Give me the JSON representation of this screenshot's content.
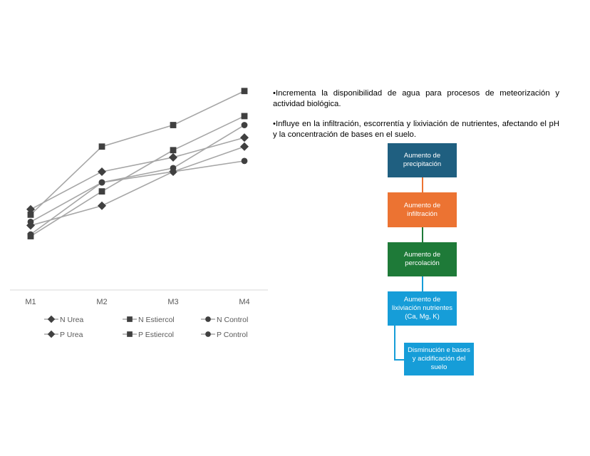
{
  "chart_data": {
    "type": "line",
    "categories": [
      "M1",
      "M2",
      "M3",
      "M4"
    ],
    "series": [
      {
        "name": "N Urea",
        "marker": "diamond",
        "values": [
          36,
          47,
          66,
          80
        ]
      },
      {
        "name": "N Estiercol",
        "marker": "square",
        "values": [
          30,
          55,
          78,
          97
        ]
      },
      {
        "name": "N Control",
        "marker": "circle",
        "values": [
          31,
          60,
          68,
          92
        ]
      },
      {
        "name": "P Urea",
        "marker": "diamond",
        "values": [
          45,
          66,
          74,
          85
        ]
      },
      {
        "name": "P Estiercol",
        "marker": "square",
        "values": [
          42,
          80,
          92,
          111
        ]
      },
      {
        "name": "P Control",
        "marker": "circle",
        "values": [
          38,
          60,
          66,
          72
        ]
      }
    ],
    "ylim": [
      0,
      126
    ],
    "grid": false,
    "legend": "bottom",
    "line_color": "#a6a6a6",
    "marker_color": "#404040"
  },
  "bullets": [
    "•Incrementa la disponibilidad de agua para procesos de meteorización y actividad biológica.",
    "•Influye en la infiltración, escorrentía y lixiviación de nutrientes, afectando el pH y la concentración de bases en el suelo."
  ],
  "flow": {
    "boxes": [
      {
        "label": "Aumento de precipitación",
        "color": "#1f5f80"
      },
      {
        "label": "Aumento de infiltración",
        "color": "#ec7332"
      },
      {
        "label": "Aumento de percolación",
        "color": "#1e7a38"
      },
      {
        "label": "Aumento de lixiviación nutrientes (Ca, Mg, K)",
        "color": "#169dd8"
      },
      {
        "label": "Disminución e bases y acidificación del suelo",
        "color": "#169dd8"
      }
    ],
    "connector_colors": [
      "#ec7332",
      "#1e7a38",
      "#169dd8",
      "#169dd8"
    ]
  }
}
